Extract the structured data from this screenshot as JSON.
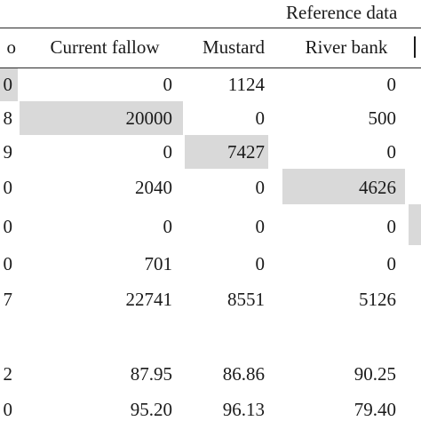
{
  "table": {
    "group_header": "Reference data",
    "columns": [
      "o",
      "Current fallow",
      "Mustard",
      "River bank"
    ],
    "rows": [
      [
        "0",
        "0",
        "1124",
        "0"
      ],
      [
        "8",
        "20000",
        "0",
        "500"
      ],
      [
        "9",
        "0",
        "7427",
        "0"
      ],
      [
        "0",
        "2040",
        "0",
        "4626"
      ],
      [
        "0",
        "0",
        "0",
        "0"
      ],
      [
        "0",
        "701",
        "0",
        "0"
      ],
      [
        "7",
        "22741",
        "8551",
        "5126"
      ],
      [
        "",
        "",
        "",
        ""
      ],
      [
        "2",
        "87.95",
        "86.86",
        "90.25"
      ],
      [
        "0",
        "95.20",
        "96.13",
        "79.40"
      ]
    ],
    "highlight_color": "#d9d9d9"
  }
}
